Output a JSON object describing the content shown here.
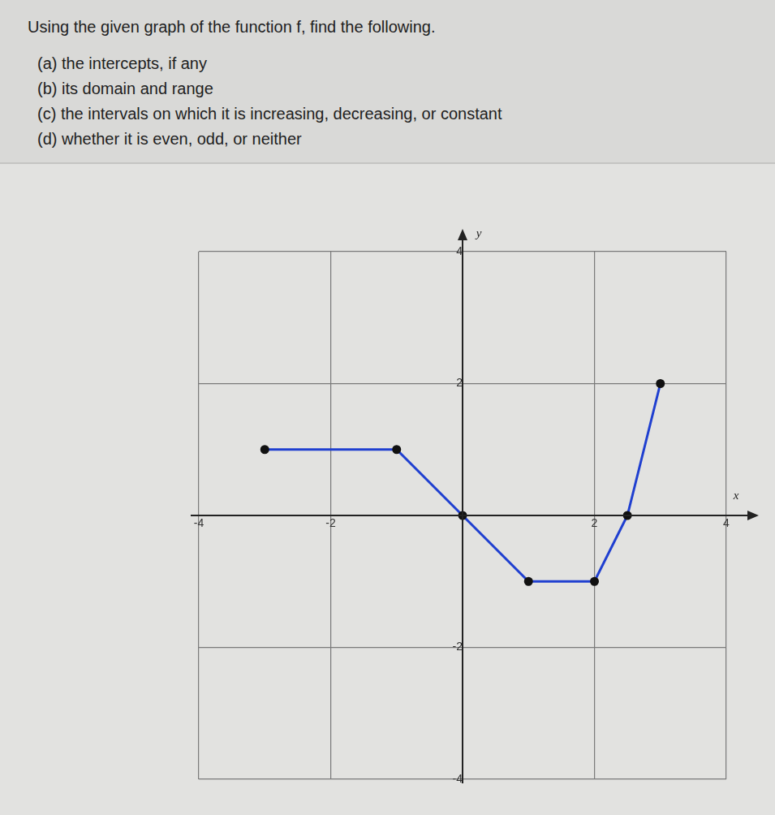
{
  "question": {
    "prompt": "Using the given graph of the function f, find the following.",
    "parts": [
      "(a) the intercepts, if any",
      "(b) its domain and range",
      "(c) the intervals on which it is increasing, decreasing, or constant",
      "(d) whether it is even, odd, or neither"
    ]
  },
  "chart_data": {
    "type": "line",
    "x_label": "x",
    "y_label": "y",
    "x": [
      -3,
      -1,
      0,
      1,
      2,
      2.5,
      3
    ],
    "values": [
      1,
      1,
      0,
      -1,
      -1,
      0,
      2
    ],
    "color": "#1f3fd0",
    "marker": "circle",
    "xlim": [
      -4,
      4
    ],
    "ylim": [
      -4,
      4
    ],
    "xticks": [
      -4,
      {
        "value": -3,
        "label": null
      },
      -2,
      {
        "value": -1,
        "label": null
      },
      {
        "value": 0,
        "label": null
      },
      {
        "value": 1,
        "label": null
      },
      2,
      {
        "value": 3,
        "label": null
      },
      4
    ],
    "yticks": [
      -4,
      {
        "value": -3,
        "label": null
      },
      -2,
      {
        "value": -1,
        "label": null
      },
      {
        "value": 0,
        "label": null
      },
      {
        "value": 1,
        "label": null
      },
      2,
      {
        "value": 3,
        "label": null
      },
      4
    ],
    "grid": true
  }
}
